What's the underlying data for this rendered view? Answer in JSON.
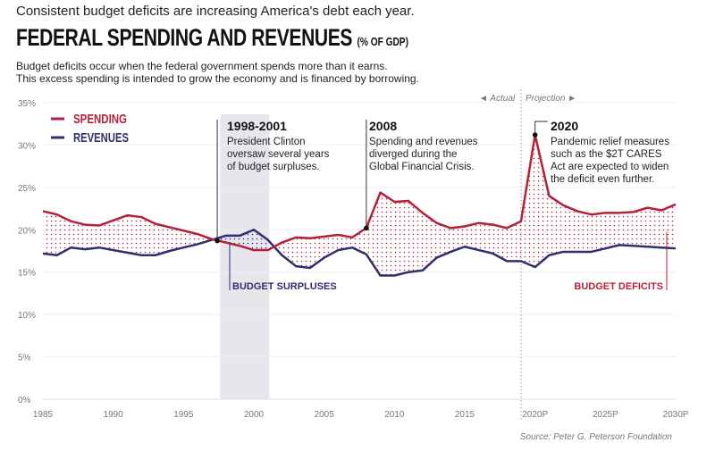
{
  "kicker": "Consistent budget deficits are increasing America's debt each year.",
  "title": "FEDERAL SPENDING AND REVENUES",
  "title_unit": "(% OF GDP)",
  "description": [
    "Budget deficits occur when the federal government spends more than it earns.",
    "This excess spending is intended to grow the economy and is financed by borrowing."
  ],
  "source": "Source: Peter G. Peterson Foundation",
  "colors": {
    "spending": "#b5213a",
    "revenues": "#2e2f6b",
    "surplus_band": "#e6e6ec"
  },
  "chart_data": {
    "type": "line",
    "title": "FEDERAL SPENDING AND REVENUES",
    "ylabel": "",
    "xlabel": "",
    "ylim": [
      0,
      35
    ],
    "xlim": [
      1985,
      2030
    ],
    "grid": true,
    "legend": "top-left",
    "y_ticks": [
      "0%",
      "5%",
      "10%",
      "15%",
      "20%",
      "25%",
      "30%",
      "35%"
    ],
    "x_ticks": [
      "1985",
      "1990",
      "1995",
      "2000",
      "2005",
      "2010",
      "2015",
      "2020P",
      "2025P",
      "2030P"
    ],
    "actual_label": "◄ Actual",
    "projection_label": "Projection ►",
    "projection_start": 2019,
    "x": [
      1985,
      1986,
      1987,
      1988,
      1989,
      1990,
      1991,
      1992,
      1993,
      1994,
      1995,
      1996,
      1997,
      1998,
      1999,
      2000,
      2001,
      2002,
      2003,
      2004,
      2005,
      2006,
      2007,
      2008,
      2009,
      2010,
      2011,
      2012,
      2013,
      2014,
      2015,
      2016,
      2017,
      2018,
      2019,
      2020,
      2021,
      2022,
      2023,
      2024,
      2025,
      2026,
      2027,
      2028,
      2029,
      2030
    ],
    "series": [
      {
        "name": "SPENDING",
        "values": [
          22.2,
          21.8,
          21.0,
          20.6,
          20.5,
          21.1,
          21.7,
          21.5,
          20.7,
          20.3,
          19.9,
          19.5,
          18.9,
          18.5,
          18.1,
          17.6,
          17.6,
          18.5,
          19.1,
          19.0,
          19.2,
          19.4,
          19.1,
          20.2,
          24.4,
          23.3,
          23.4,
          22.0,
          20.8,
          20.2,
          20.4,
          20.8,
          20.6,
          20.2,
          21.0,
          31.2,
          24.0,
          22.9,
          22.2,
          21.8,
          22.0,
          22.0,
          22.1,
          22.6,
          22.3,
          23.0
        ]
      },
      {
        "name": "REVENUES",
        "values": [
          17.2,
          17.0,
          17.9,
          17.7,
          17.9,
          17.6,
          17.3,
          17.0,
          17.0,
          17.5,
          17.9,
          18.3,
          18.8,
          19.3,
          19.3,
          20.0,
          18.8,
          17.0,
          15.7,
          15.5,
          16.7,
          17.6,
          17.9,
          17.1,
          14.6,
          14.6,
          15.0,
          15.2,
          16.7,
          17.4,
          18.0,
          17.6,
          17.2,
          16.3,
          16.3,
          15.6,
          17.0,
          17.4,
          17.4,
          17.4,
          17.8,
          18.2,
          18.1,
          18.0,
          17.9,
          17.8
        ]
      }
    ],
    "annotations": [
      {
        "heading": "1998-2001",
        "lines": [
          "President Clinton",
          "oversaw several years",
          "of budget surpluses."
        ]
      },
      {
        "heading": "2008",
        "lines": [
          "Spending and revenues",
          "diverged during the",
          "Global Financial Crisis."
        ]
      },
      {
        "heading": "2020",
        "lines": [
          "Pandemic relief measures",
          "such as the $2T CARES",
          "Act are expected to widen",
          "the deficit even further."
        ]
      }
    ],
    "area_labels": {
      "surplus": "BUDGET SURPLUSES",
      "deficit": "BUDGET DEFICITS"
    }
  }
}
